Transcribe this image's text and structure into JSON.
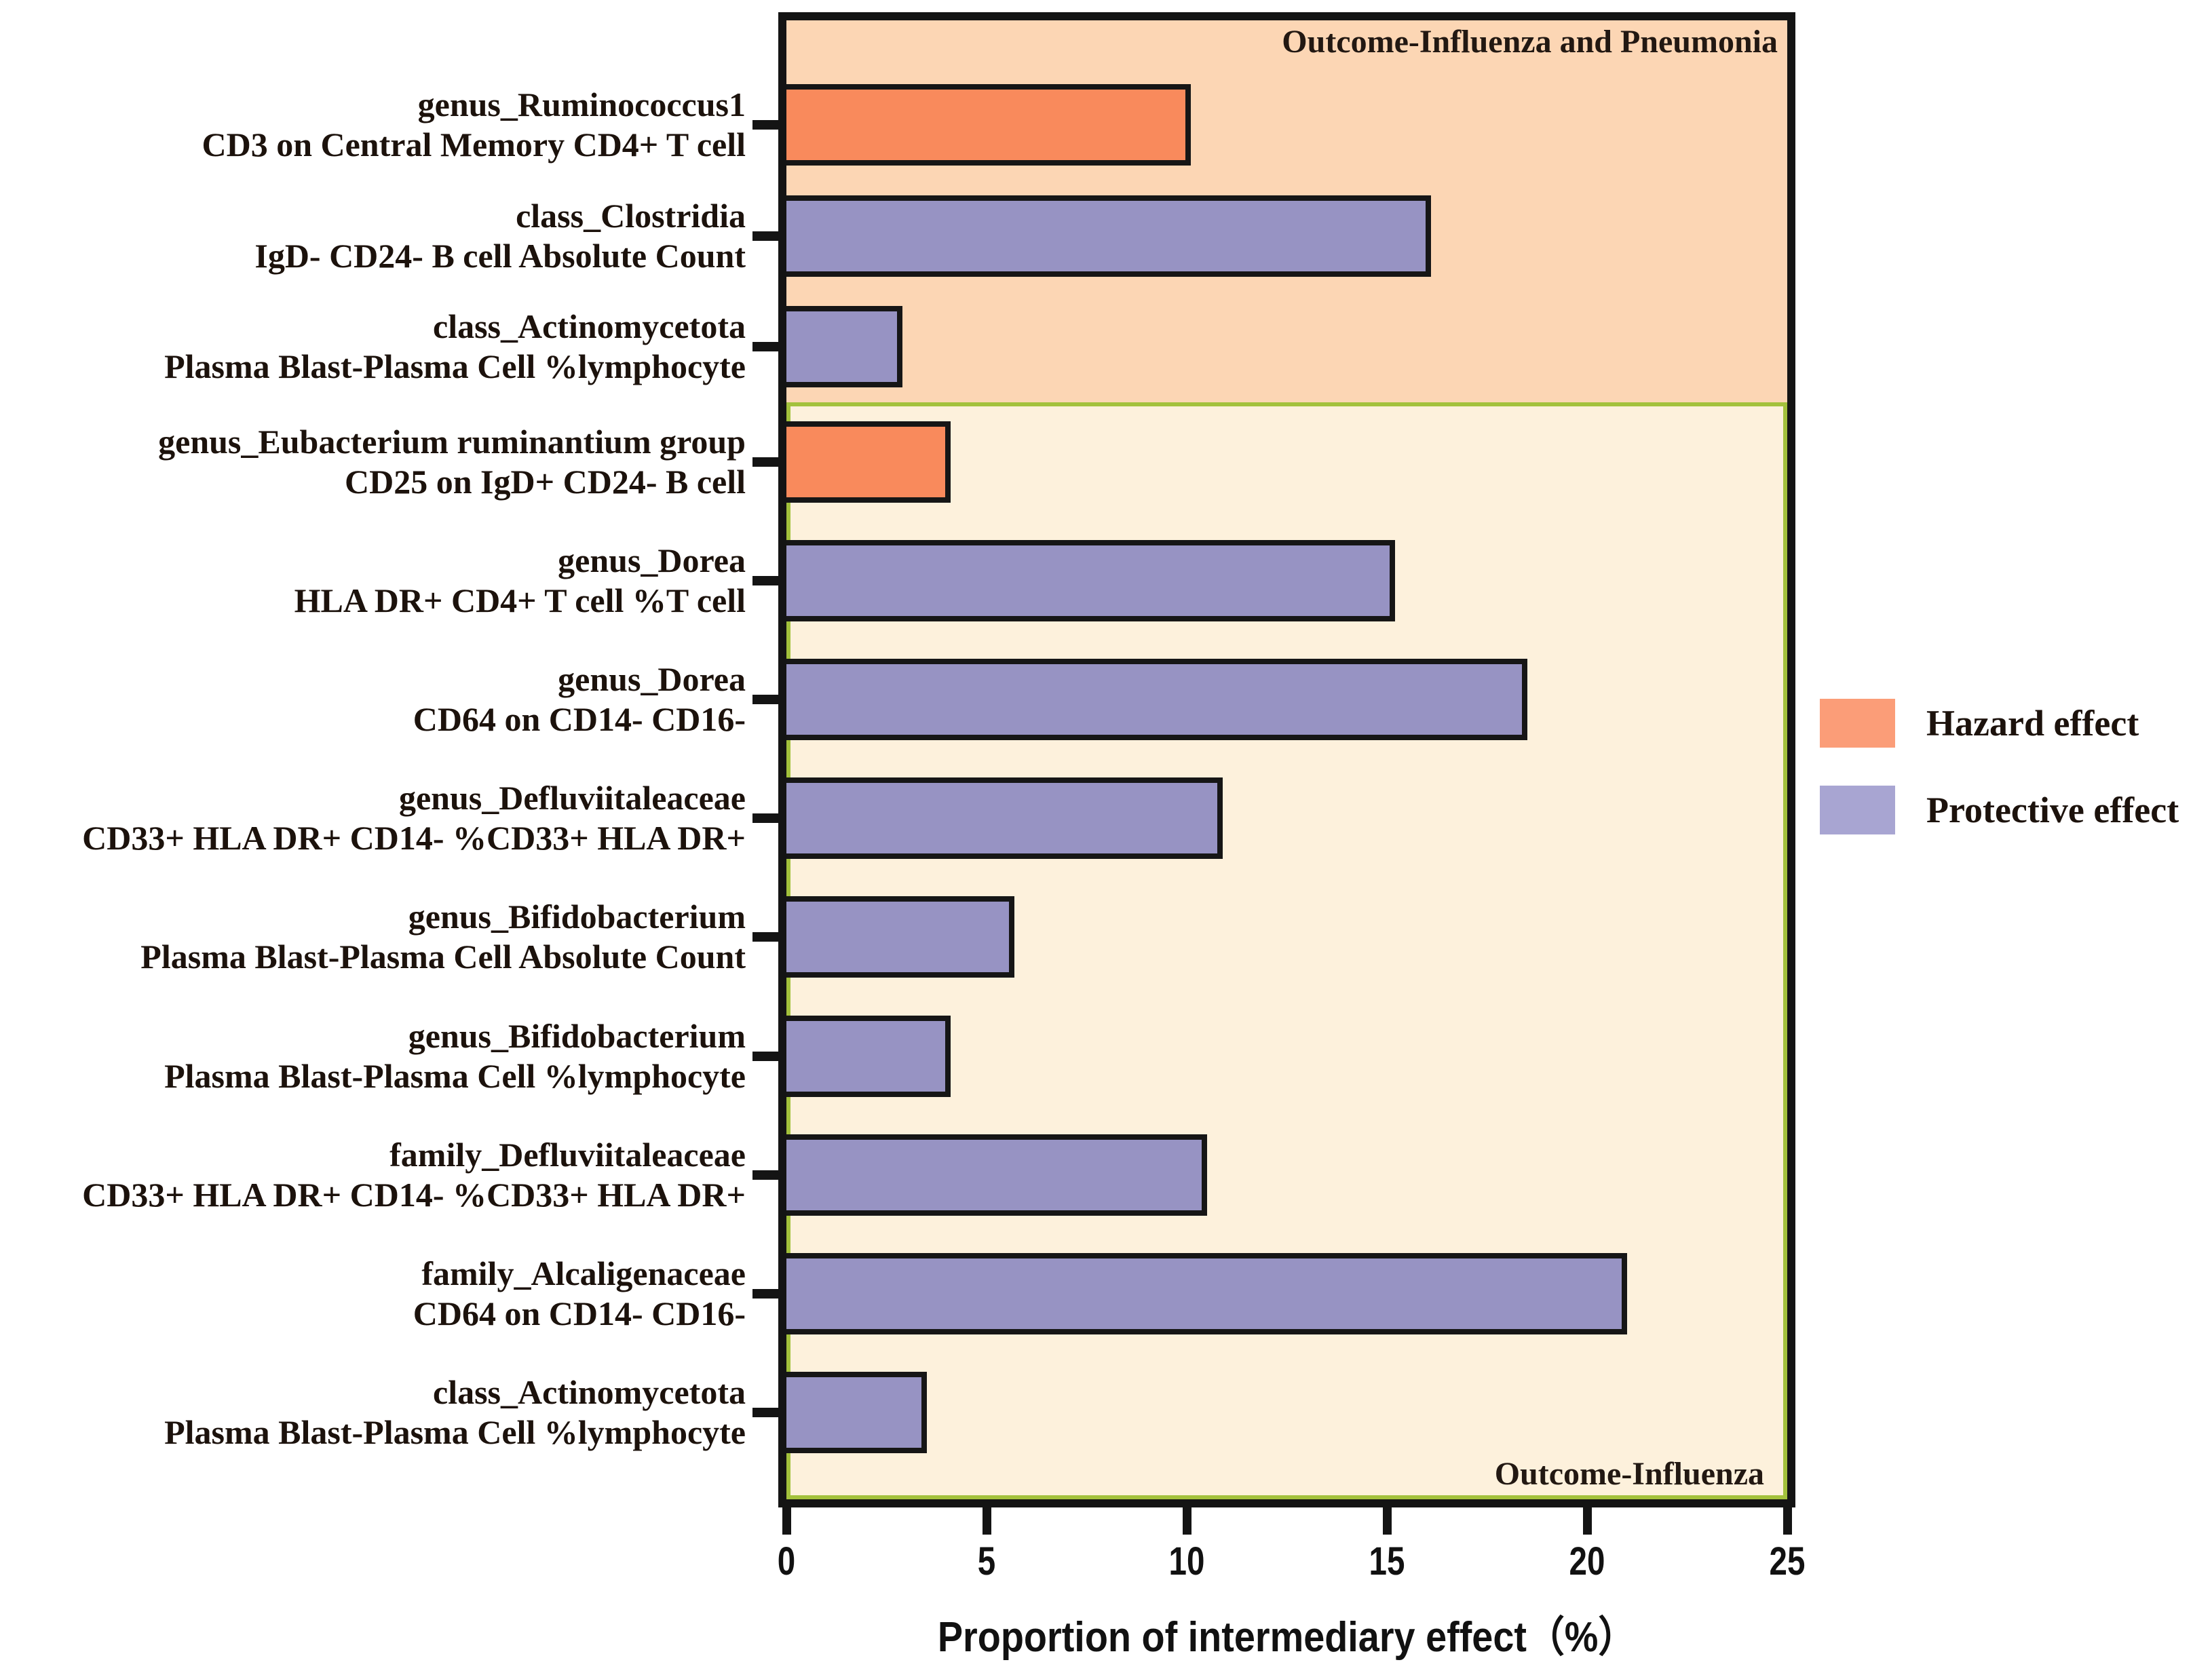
{
  "figure_titles": {
    "top_section": "Outcome-Influenza and Pneumonia",
    "bottom_section": "Outcome-Influenza"
  },
  "legend": {
    "items": [
      {
        "label": "Hazard effect",
        "color": "#fb9d78"
      },
      {
        "label": "Protective effect",
        "color": "#a8a5d2"
      }
    ]
  },
  "colors": {
    "hazard_bar": "#f98a5c",
    "protective_bar": "#9793c3",
    "top_section_bg": "#fcd6b4",
    "bottom_section_bg": "#fdf1dc",
    "divider_green": "#a3c13c",
    "axis_black": "#141414",
    "text": "#1c120c"
  },
  "chart_data": {
    "type": "bar",
    "orientation": "horizontal",
    "xlabel": "Proportion of intermediary effect（%）",
    "xlim": [
      0,
      25
    ],
    "xticks": [
      0,
      5,
      10,
      15,
      20,
      25
    ],
    "grid": false,
    "legend_position": "right",
    "sections": [
      {
        "id": "influenza_pneumonia",
        "label": "Outcome-Influenza and Pneumonia",
        "row_count": 3
      },
      {
        "id": "influenza",
        "label": "Outcome-Influenza",
        "row_count": 9
      }
    ],
    "rows": [
      {
        "taxon": "genus_Ruminococcus1",
        "trait": "CD3 on Central Memory CD4+ T cell",
        "value": 10.1,
        "effect": "hazard",
        "section": "influenza_pneumonia"
      },
      {
        "taxon": "class_Clostridia",
        "trait": "IgD- CD24- B cell Absolute Count",
        "value": 16.1,
        "effect": "protective",
        "section": "influenza_pneumonia"
      },
      {
        "taxon": "class_Actinomycetota",
        "trait": "Plasma Blast-Plasma Cell %lymphocyte",
        "value": 2.9,
        "effect": "protective",
        "section": "influenza_pneumonia"
      },
      {
        "taxon": "genus_Eubacterium ruminantium group",
        "trait": "CD25 on IgD+ CD24- B cell",
        "value": 4.1,
        "effect": "hazard",
        "section": "influenza"
      },
      {
        "taxon": "genus_Dorea",
        "trait": "HLA DR+ CD4+ T cell %T cell",
        "value": 15.2,
        "effect": "protective",
        "section": "influenza"
      },
      {
        "taxon": "genus_Dorea",
        "trait": "CD64 on CD14- CD16-",
        "value": 18.5,
        "effect": "protective",
        "section": "influenza"
      },
      {
        "taxon": "genus_Defluviitaleaceae",
        "trait": "CD33+ HLA DR+ CD14- %CD33+ HLA DR+",
        "value": 10.9,
        "effect": "protective",
        "section": "influenza"
      },
      {
        "taxon": "genus_Bifidobacterium",
        "trait": "Plasma Blast-Plasma Cell Absolute Count",
        "value": 5.7,
        "effect": "protective",
        "section": "influenza"
      },
      {
        "taxon": "genus_Bifidobacterium",
        "trait": "Plasma Blast-Plasma Cell %lymphocyte",
        "value": 4.1,
        "effect": "protective",
        "section": "influenza"
      },
      {
        "taxon": "family_Defluviitaleaceae",
        "trait": "CD33+ HLA DR+ CD14- %CD33+ HLA DR+",
        "value": 10.5,
        "effect": "protective",
        "section": "influenza"
      },
      {
        "taxon": "family_Alcaligenaceae",
        "trait": "CD64 on CD14- CD16-",
        "value": 21.0,
        "effect": "protective",
        "section": "influenza"
      },
      {
        "taxon": "class_Actinomycetota",
        "trait": "Plasma Blast-Plasma Cell %lymphocyte",
        "value": 3.5,
        "effect": "protective",
        "section": "influenza"
      }
    ]
  }
}
